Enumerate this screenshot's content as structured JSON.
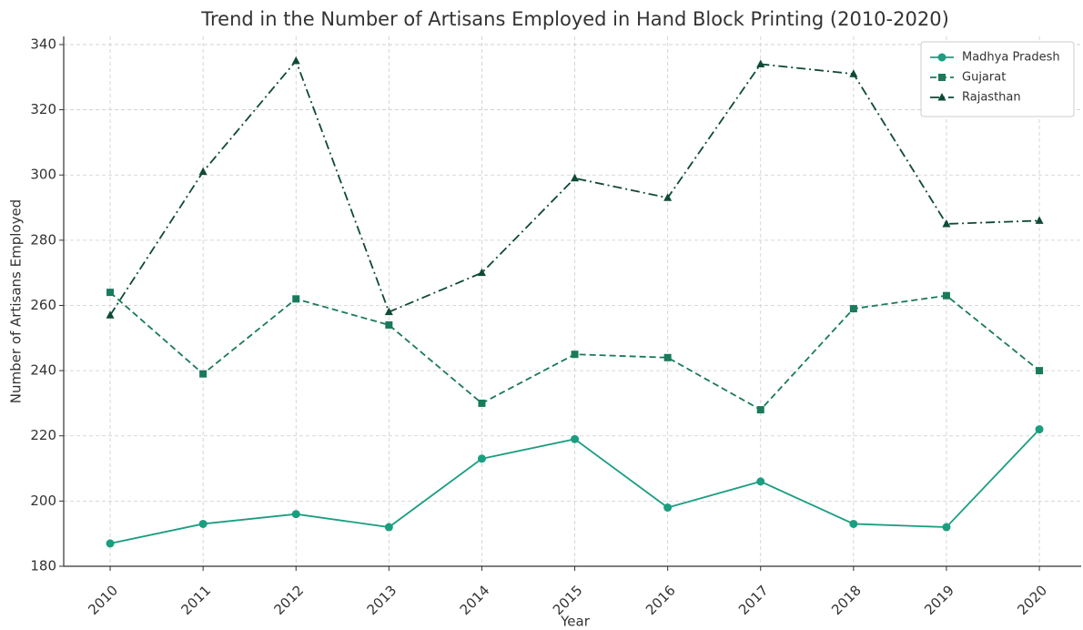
{
  "chart_data": {
    "type": "line",
    "title": "Trend in the Number of Artisans Employed in Hand Block Printing (2010-2020)",
    "xlabel": "Year",
    "ylabel": "Number of Artisans Employed",
    "x": [
      2010,
      2011,
      2012,
      2013,
      2014,
      2015,
      2016,
      2017,
      2018,
      2019,
      2020
    ],
    "xlim": [
      2009.5,
      2020.45
    ],
    "xticks": [
      2010,
      2011,
      2012,
      2013,
      2014,
      2015,
      2016,
      2017,
      2018,
      2019,
      2020
    ],
    "ylim": [
      180,
      342.5
    ],
    "yticks": [
      180,
      200,
      220,
      240,
      260,
      280,
      300,
      320,
      340
    ],
    "grid": true,
    "legend": "upper right",
    "series": [
      {
        "name": "Madhya Pradesh",
        "color": "#1b9e80",
        "marker": "circle",
        "linestyle": "solid",
        "values": [
          187,
          193,
          196,
          192,
          213,
          219,
          198,
          206,
          193,
          192,
          222
        ]
      },
      {
        "name": "Gujarat",
        "color": "#197a5c",
        "marker": "square",
        "linestyle": "dashed",
        "values": [
          264,
          239,
          262,
          254,
          230,
          245,
          244,
          228,
          259,
          263,
          240
        ]
      },
      {
        "name": "Rajasthan",
        "color": "#0f4a37",
        "marker": "triangle",
        "linestyle": "dashdot",
        "values": [
          257,
          301,
          335,
          258,
          270,
          299,
          293,
          334,
          331,
          285,
          286
        ]
      }
    ]
  }
}
